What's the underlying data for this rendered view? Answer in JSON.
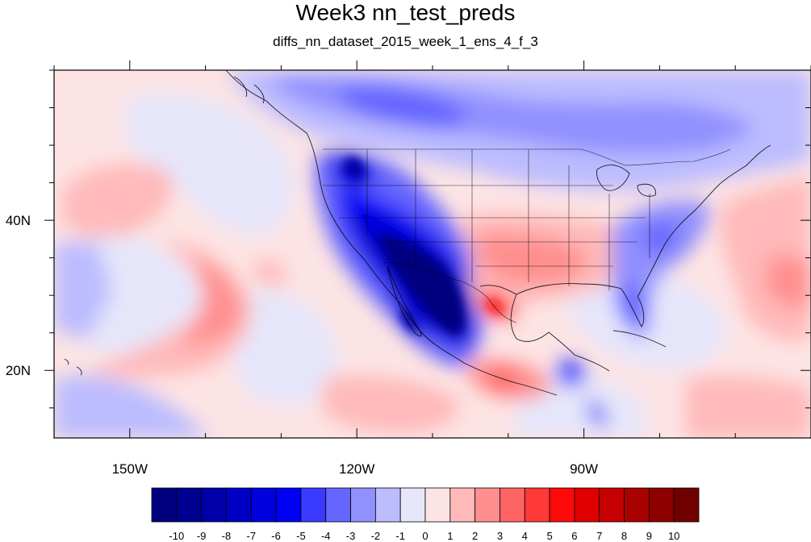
{
  "title": "Week3 nn_test_preds",
  "subtitle": "diffs_nn_dataset_2015_week_1_ens_4_f_3",
  "map": {
    "lon_range": [
      -160,
      -60
    ],
    "lat_range": [
      11,
      60
    ],
    "x_ticks": [
      {
        "value": -150,
        "label": "150W"
      },
      {
        "value": -120,
        "label": "120W"
      },
      {
        "value": -90,
        "label": "90W"
      }
    ],
    "y_ticks": [
      {
        "value": 40,
        "label": "40N"
      },
      {
        "value": 20,
        "label": "20N"
      }
    ]
  },
  "colorbar": {
    "labels": [
      "-10",
      "-9",
      "-8",
      "-7",
      "-6",
      "-5",
      "-4",
      "-3",
      "-2",
      "-1",
      "0",
      "1",
      "2",
      "3",
      "4",
      "5",
      "6",
      "7",
      "8",
      "9",
      "10"
    ],
    "colors": [
      "#00007f",
      "#000090",
      "#0000a8",
      "#0000c4",
      "#0000dc",
      "#0000f5",
      "#3a3aff",
      "#6565ff",
      "#9090ff",
      "#bcbcff",
      "#e6e6fb",
      "#fde4e4",
      "#ffb9b9",
      "#ff8f8f",
      "#ff6464",
      "#ff3838",
      "#ff0a0a",
      "#e00000",
      "#c60000",
      "#a90000",
      "#8e0000",
      "#700000"
    ]
  }
}
